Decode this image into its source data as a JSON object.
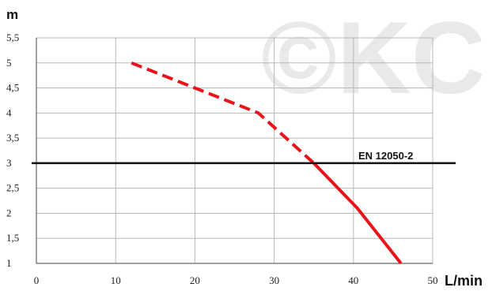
{
  "chart_data": {
    "type": "line",
    "title": "",
    "xlabel": "L/min",
    "ylabel": "m",
    "xlim": [
      0,
      50
    ],
    "ylim": [
      1,
      5.5
    ],
    "x_ticks": [
      "0",
      "10",
      "20",
      "30",
      "40",
      "50"
    ],
    "y_ticks": [
      "1",
      "1,5",
      "2",
      "2,5",
      "3",
      "3,5",
      "4",
      "4,5",
      "5",
      "5,5"
    ],
    "grid": true,
    "series": [
      {
        "color": "#e8141b",
        "segments": [
          {
            "style": "dashed",
            "points": [
              [
                12,
                5.0
              ],
              [
                28,
                4.0
              ],
              [
                35,
                3.0
              ]
            ]
          },
          {
            "style": "solid",
            "points": [
              [
                35,
                3.0
              ],
              [
                40.5,
                2.1
              ],
              [
                46,
                1.0
              ]
            ]
          }
        ]
      }
    ],
    "reference_line": {
      "label": "EN 12050-2",
      "y": 3.0,
      "color": "#111111"
    },
    "watermark": {
      "text": "©KC",
      "color": "#e9e9e9"
    }
  }
}
